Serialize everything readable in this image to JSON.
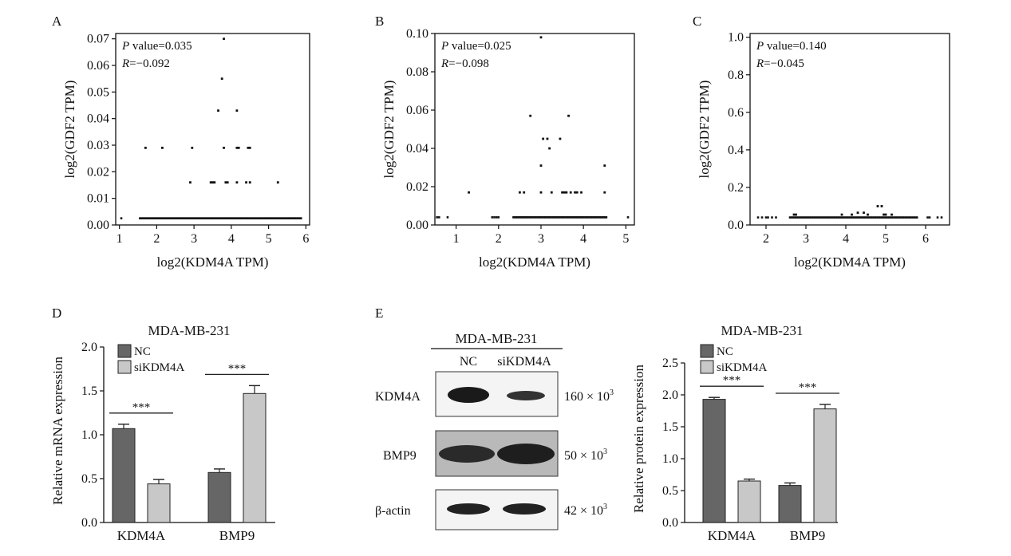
{
  "panels": {
    "A": "A",
    "B": "B",
    "C": "C",
    "D": "D",
    "E": "E"
  },
  "colors": {
    "nc": "#666666",
    "si": "#c8c8c8",
    "axis": "#111111"
  },
  "chart_data": [
    {
      "id": "A",
      "type": "scatter",
      "xlabel": "log2(KDM4A TPM)",
      "ylabel": "log2(GDF2 TPM)",
      "xlim": [
        0.9,
        6.1
      ],
      "ylim": [
        0,
        0.072
      ],
      "xticks": [
        1,
        2,
        3,
        4,
        5,
        6
      ],
      "yticks": [
        0.0,
        0.01,
        0.02,
        0.03,
        0.04,
        0.05,
        0.06,
        0.07
      ],
      "ytick_labels": [
        "0.00",
        "0.01",
        "0.02",
        "0.03",
        "0.04",
        "0.05",
        "0.06",
        "0.07"
      ],
      "annotations": {
        "p_italic": "P",
        "p_text": " value=0.035",
        "r_italic": "R",
        "r_text": "=−0.092"
      },
      "points": [
        [
          3.8,
          0.07
        ],
        [
          3.75,
          0.055
        ],
        [
          3.65,
          0.043
        ],
        [
          4.15,
          0.043
        ],
        [
          1.7,
          0.029
        ],
        [
          2.15,
          0.029
        ],
        [
          2.95,
          0.029
        ],
        [
          3.8,
          0.029
        ],
        [
          4.15,
          0.029
        ],
        [
          4.2,
          0.029
        ],
        [
          4.45,
          0.029
        ],
        [
          4.5,
          0.029
        ],
        [
          2.9,
          0.016
        ],
        [
          3.45,
          0.016
        ],
        [
          3.5,
          0.016
        ],
        [
          3.55,
          0.016
        ],
        [
          3.85,
          0.016
        ],
        [
          3.9,
          0.016
        ],
        [
          4.15,
          0.016
        ],
        [
          4.4,
          0.016
        ],
        [
          4.5,
          0.016
        ],
        [
          5.25,
          0.016
        ]
      ],
      "baseline": {
        "y": 0.0025,
        "x_from": 1.55,
        "x_to": 5.9,
        "step": 0.04,
        "extra_x": [
          1.05
        ]
      }
    },
    {
      "id": "B",
      "type": "scatter",
      "xlabel": "log2(KDM4A TPM)",
      "ylabel": "log2(GDF2 TPM)",
      "xlim": [
        0.5,
        5.2
      ],
      "ylim": [
        0,
        0.1
      ],
      "xticks": [
        1,
        2,
        3,
        4,
        5
      ],
      "yticks": [
        0.0,
        0.02,
        0.04,
        0.06,
        0.08,
        0.1
      ],
      "ytick_labels": [
        "0.00",
        "0.02",
        "0.04",
        "0.06",
        "0.08",
        "0.10"
      ],
      "annotations": {
        "p_italic": "P",
        "p_text": " value=0.025",
        "r_italic": "R",
        "r_text": "=−0.098"
      },
      "points": [
        [
          3.0,
          0.098
        ],
        [
          2.75,
          0.057
        ],
        [
          3.65,
          0.057
        ],
        [
          3.05,
          0.045
        ],
        [
          3.15,
          0.045
        ],
        [
          3.45,
          0.045
        ],
        [
          3.2,
          0.04
        ],
        [
          3.0,
          0.031
        ],
        [
          1.3,
          0.017
        ],
        [
          2.5,
          0.017
        ],
        [
          2.6,
          0.017
        ],
        [
          3.0,
          0.017
        ],
        [
          3.25,
          0.017
        ],
        [
          3.5,
          0.017
        ],
        [
          3.55,
          0.017
        ],
        [
          3.6,
          0.017
        ],
        [
          3.7,
          0.017
        ],
        [
          3.8,
          0.017
        ],
        [
          3.85,
          0.017
        ],
        [
          3.95,
          0.017
        ],
        [
          4.5,
          0.017
        ],
        [
          4.5,
          0.031
        ]
      ],
      "baseline": {
        "y": 0.004,
        "x_from": 2.35,
        "x_to": 4.55,
        "step": 0.03,
        "extra_x": [
          0.55,
          0.6,
          0.8,
          1.85,
          1.9,
          1.95,
          2.0,
          5.05
        ]
      }
    },
    {
      "id": "C",
      "type": "scatter",
      "xlabel": "log2(KDM4A TPM)",
      "ylabel": "log2(GDF2 TPM)",
      "xlim": [
        1.6,
        6.6
      ],
      "ylim": [
        0,
        1.02
      ],
      "xticks": [
        2,
        3,
        4,
        5,
        6
      ],
      "yticks": [
        0.0,
        0.2,
        0.4,
        0.6,
        0.8,
        1.0
      ],
      "ytick_labels": [
        "0.0",
        "0.2",
        "0.4",
        "0.6",
        "0.8",
        "1.0"
      ],
      "annotations": {
        "p_italic": "P",
        "p_text": " value=0.140",
        "r_italic": "R",
        "r_text": "=−0.045"
      },
      "points": [
        [
          4.8,
          0.1
        ],
        [
          4.9,
          0.1
        ],
        [
          4.3,
          0.065
        ],
        [
          4.45,
          0.065
        ],
        [
          4.55,
          0.055
        ],
        [
          3.9,
          0.055
        ],
        [
          4.15,
          0.055
        ],
        [
          4.95,
          0.055
        ],
        [
          5.0,
          0.055
        ],
        [
          5.15,
          0.055
        ],
        [
          2.7,
          0.055
        ],
        [
          2.75,
          0.055
        ]
      ],
      "baseline": {
        "y": 0.04,
        "x_from": 2.6,
        "x_to": 5.8,
        "step": 0.035,
        "extra_x": [
          1.8,
          1.9,
          2.0,
          2.05,
          2.15,
          2.25,
          6.05,
          6.1,
          6.3,
          6.4
        ]
      }
    },
    {
      "id": "D",
      "type": "bar",
      "title": "MDA-MB-231",
      "ylabel": "Relative mRNA expression",
      "ylim": [
        0,
        2.0
      ],
      "yticks": [
        0.0,
        0.5,
        1.0,
        1.5,
        2.0
      ],
      "ytick_labels": [
        "0.0",
        "0.5",
        "1.0",
        "1.5",
        "2.0"
      ],
      "categories": [
        "KDM4A",
        "BMP9"
      ],
      "series": [
        {
          "name": "NC",
          "values": [
            1.07,
            0.57
          ],
          "errors": [
            0.05,
            0.04
          ]
        },
        {
          "name": "siKDM4A",
          "values": [
            0.44,
            1.47
          ],
          "errors": [
            0.05,
            0.09
          ]
        }
      ],
      "significance": [
        "***",
        "***"
      ]
    },
    {
      "id": "E",
      "type": "bar",
      "title": "MDA-MB-231",
      "ylabel": "Relative protein expression",
      "ylim": [
        0,
        2.5
      ],
      "yticks": [
        0.0,
        0.5,
        1.0,
        1.5,
        2.0,
        2.5
      ],
      "ytick_labels": [
        "0.0",
        "0.5",
        "1.0",
        "1.5",
        "2.0",
        "2.5"
      ],
      "categories": [
        "KDM4A",
        "BMP9"
      ],
      "series": [
        {
          "name": "NC",
          "values": [
            1.93,
            0.58
          ],
          "errors": [
            0.03,
            0.04
          ]
        },
        {
          "name": "siKDM4A",
          "values": [
            0.65,
            1.78
          ],
          "errors": [
            0.03,
            0.07
          ]
        }
      ],
      "significance": [
        "***",
        "***"
      ]
    }
  ],
  "blot": {
    "title": "MDA-MB-231",
    "lanes": [
      "NC",
      "siKDM4A"
    ],
    "rows": [
      {
        "protein": "KDM4A",
        "mw": "160 × 10",
        "exp": "3"
      },
      {
        "protein": "BMP9",
        "mw": "50 × 10",
        "exp": "3"
      },
      {
        "protein": "β-actin",
        "mw": "42 × 10",
        "exp": "3"
      }
    ]
  }
}
